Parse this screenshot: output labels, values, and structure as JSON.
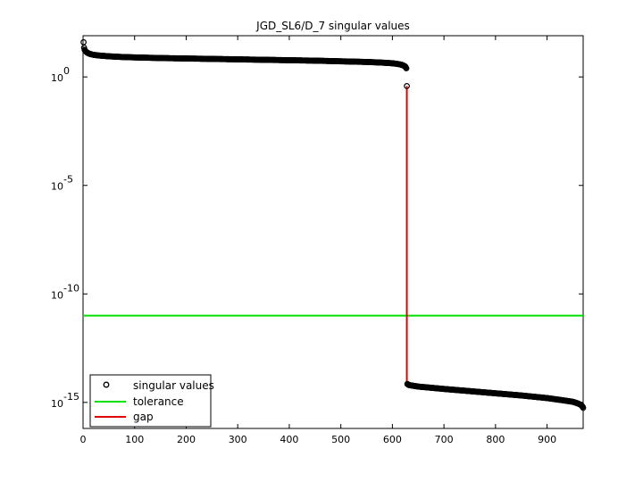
{
  "chart_data": {
    "type": "scatter",
    "title": "JGD_SL6/D_7 singular values",
    "xlabel": "",
    "ylabel": "",
    "xlim": [
      0,
      970
    ],
    "ylim_log10": [
      -16.2,
      1.9
    ],
    "y_scale": "log",
    "grid": false,
    "legend_position": "bottom-left",
    "x_ticks": [
      0,
      100,
      200,
      300,
      400,
      500,
      600,
      700,
      800,
      900
    ],
    "y_ticks": [
      {
        "base": "10",
        "exp": "0",
        "log10": 0
      },
      {
        "base": "10",
        "exp": "-5",
        "log10": -5
      },
      {
        "base": "10",
        "exp": "-10",
        "log10": -10
      },
      {
        "base": "10",
        "exp": "-15",
        "log10": -15
      }
    ],
    "series": [
      {
        "name": "singular values",
        "style": "circle-markers",
        "color": "#000000",
        "points": [
          [
            1,
            1.6
          ],
          [
            2,
            1.35
          ],
          [
            3,
            1.25
          ],
          [
            5,
            1.18
          ],
          [
            8,
            1.12
          ],
          [
            12,
            1.07
          ],
          [
            20,
            1.02
          ],
          [
            30,
            0.99
          ],
          [
            50,
            0.95
          ],
          [
            75,
            0.92
          ],
          [
            100,
            0.9
          ],
          [
            150,
            0.87
          ],
          [
            200,
            0.85
          ],
          [
            250,
            0.83
          ],
          [
            300,
            0.81
          ],
          [
            350,
            0.79
          ],
          [
            400,
            0.77
          ],
          [
            450,
            0.75
          ],
          [
            500,
            0.72
          ],
          [
            550,
            0.69
          ],
          [
            580,
            0.66
          ],
          [
            600,
            0.63
          ],
          [
            610,
            0.6
          ],
          [
            618,
            0.56
          ],
          [
            622,
            0.52
          ],
          [
            625,
            0.48
          ],
          [
            627,
            0.4
          ],
          [
            628,
            -0.42
          ],
          [
            629,
            -14.15
          ],
          [
            632,
            -14.2
          ],
          [
            650,
            -14.27
          ],
          [
            700,
            -14.38
          ],
          [
            750,
            -14.48
          ],
          [
            800,
            -14.58
          ],
          [
            850,
            -14.68
          ],
          [
            900,
            -14.8
          ],
          [
            930,
            -14.9
          ],
          [
            950,
            -14.97
          ],
          [
            960,
            -15.05
          ],
          [
            966,
            -15.12
          ],
          [
            969,
            -15.2
          ],
          [
            970,
            -15.25
          ]
        ]
      },
      {
        "name": "tolerance",
        "style": "line",
        "color": "#00e000",
        "log10_value": -11
      },
      {
        "name": "gap",
        "style": "line",
        "color": "#e00000",
        "x": 628,
        "log10_from": -0.42,
        "log10_to": -14.15
      }
    ]
  }
}
